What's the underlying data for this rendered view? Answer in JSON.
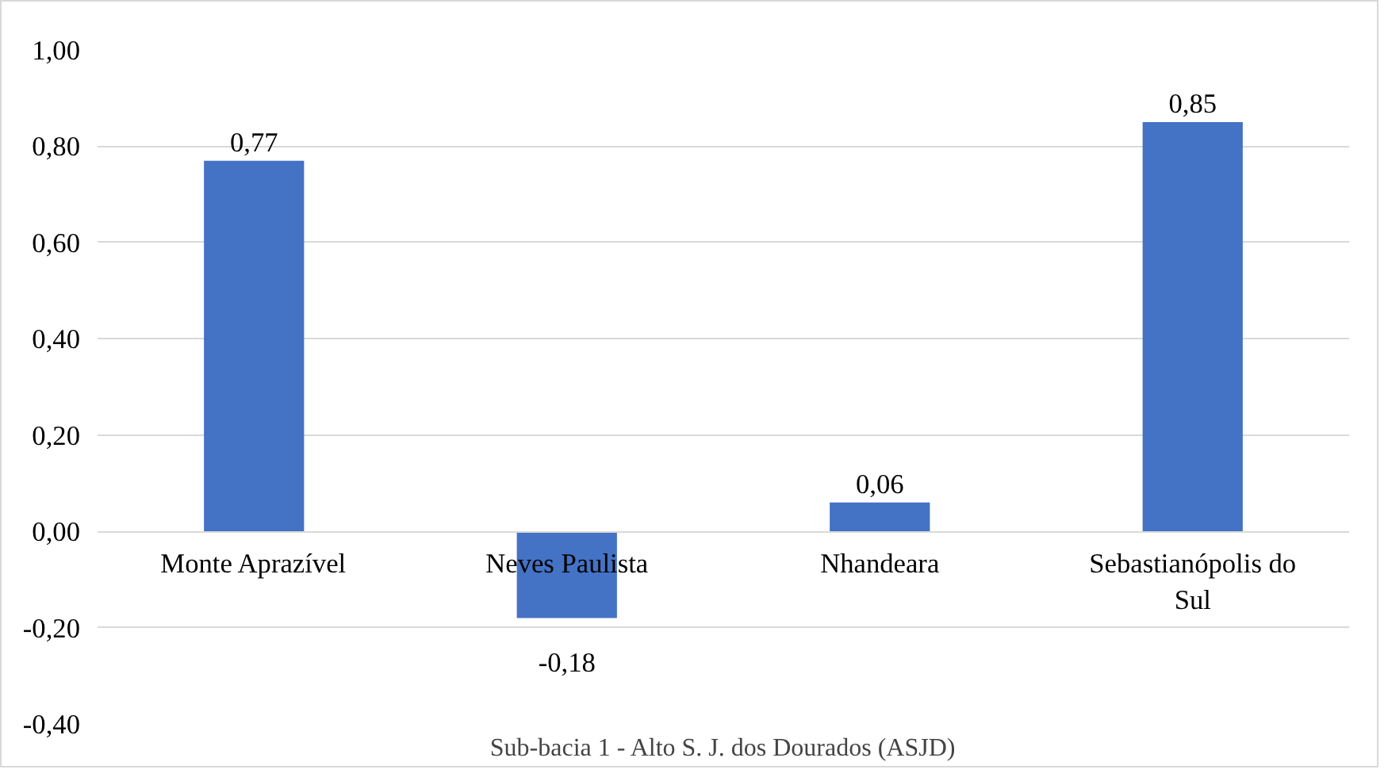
{
  "chart_data": {
    "type": "bar",
    "categories": [
      "Monte Aprazível",
      "Neves Paulista",
      "Nhandeara",
      "Sebastianópolis do Sul"
    ],
    "values": [
      0.77,
      -0.18,
      0.06,
      0.85
    ],
    "value_labels": [
      "0,77",
      "-0,18",
      "0,06",
      "0,85"
    ],
    "color": "#4472c4",
    "xlabel": "Sub-bacia 1 - Alto S. J. dos Dourados (ASJD)",
    "ylim": [
      -0.4,
      1.0
    ],
    "yticks": [
      {
        "value": -0.4,
        "label": "-0,40"
      },
      {
        "value": -0.2,
        "label": "-0,20"
      },
      {
        "value": 0,
        "label": "0,00"
      },
      {
        "value": 0.2,
        "label": "0,20"
      },
      {
        "value": 0.4,
        "label": "0,40"
      },
      {
        "value": 0.6,
        "label": "0,60"
      },
      {
        "value": 0.8,
        "label": "0,80"
      },
      {
        "value": 1.0,
        "label": "1,00"
      }
    ],
    "grid": "y"
  }
}
